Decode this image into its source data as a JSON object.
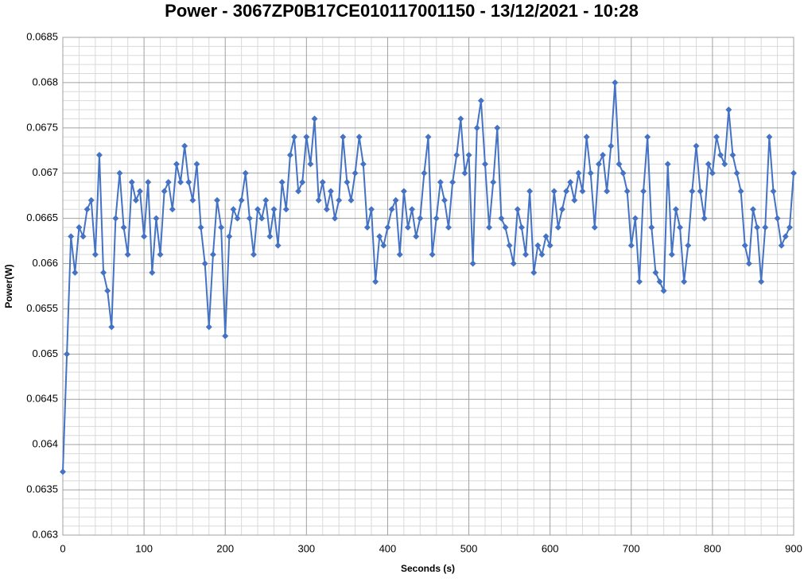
{
  "chart_data": {
    "type": "line",
    "title": "Power - 3067ZP0B17CE010117001150 - 13/12/2021 - 10:28",
    "x_label": "Seconds (s)",
    "y_label": "Power(W)",
    "color": "#4472c4",
    "grid": true,
    "markers": "diamond",
    "xlim": [
      0,
      900
    ],
    "xticks": [
      0,
      100,
      200,
      300,
      400,
      500,
      600,
      700,
      800,
      900
    ],
    "ylim": [
      0.063,
      0.0685
    ],
    "yticks": [
      0.063,
      0.0635,
      0.064,
      0.0645,
      0.065,
      0.0655,
      0.066,
      0.0665,
      0.067,
      0.0675,
      0.068,
      0.0685
    ],
    "xminorticks": [
      20,
      40,
      60,
      80,
      120,
      140,
      160,
      180,
      220,
      240,
      260,
      280,
      320,
      340,
      360,
      380,
      420,
      440,
      460,
      480,
      520,
      540,
      560,
      580,
      620,
      640,
      660,
      680,
      720,
      740,
      760,
      780,
      820,
      840,
      860,
      880
    ],
    "yminorticks": [
      0.0631,
      0.0632,
      0.0633,
      0.0634,
      0.0636,
      0.0637,
      0.0638,
      0.0639,
      0.0641,
      0.0642,
      0.0643,
      0.0644,
      0.0646,
      0.0647,
      0.0648,
      0.0649,
      0.0651,
      0.0652,
      0.0653,
      0.0654,
      0.0656,
      0.0657,
      0.0658,
      0.0659,
      0.0661,
      0.0662,
      0.0663,
      0.0664,
      0.0666,
      0.0667,
      0.0668,
      0.0669,
      0.0671,
      0.0672,
      0.0673,
      0.0674,
      0.0676,
      0.0677,
      0.0678,
      0.0679,
      0.0681,
      0.0682,
      0.0683,
      0.0684
    ],
    "x": [
      0,
      5,
      10,
      15,
      20,
      25,
      30,
      35,
      40,
      45,
      50,
      55,
      60,
      65,
      70,
      75,
      80,
      85,
      90,
      95,
      100,
      105,
      110,
      115,
      120,
      125,
      130,
      135,
      140,
      145,
      150,
      155,
      160,
      165,
      170,
      175,
      180,
      185,
      190,
      195,
      200,
      205,
      210,
      215,
      220,
      225,
      230,
      235,
      240,
      245,
      250,
      255,
      260,
      265,
      270,
      275,
      280,
      285,
      290,
      295,
      300,
      305,
      310,
      315,
      320,
      325,
      330,
      335,
      340,
      345,
      350,
      355,
      360,
      365,
      370,
      375,
      380,
      385,
      390,
      395,
      400,
      405,
      410,
      415,
      420,
      425,
      430,
      435,
      440,
      445,
      450,
      455,
      460,
      465,
      470,
      475,
      480,
      485,
      490,
      495,
      500,
      505,
      510,
      515,
      520,
      525,
      530,
      535,
      540,
      545,
      550,
      555,
      560,
      565,
      570,
      575,
      580,
      585,
      590,
      595,
      600,
      605,
      610,
      615,
      620,
      625,
      630,
      635,
      640,
      645,
      650,
      655,
      660,
      665,
      670,
      675,
      680,
      685,
      690,
      695,
      700,
      705,
      710,
      715,
      720,
      725,
      730,
      735,
      740,
      745,
      750,
      755,
      760,
      765,
      770,
      775,
      780,
      785,
      790,
      795,
      800,
      805,
      810,
      815,
      820,
      825,
      830,
      835,
      840,
      845,
      850,
      855,
      860,
      865,
      870,
      875,
      880,
      885,
      890,
      895,
      900
    ],
    "values": [
      0.0637,
      0.065,
      0.0663,
      0.0659,
      0.0664,
      0.0663,
      0.0666,
      0.0667,
      0.0661,
      0.0672,
      0.0659,
      0.0657,
      0.0653,
      0.0665,
      0.067,
      0.0664,
      0.0661,
      0.0669,
      0.0667,
      0.0668,
      0.0663,
      0.0669,
      0.0659,
      0.0665,
      0.0661,
      0.0668,
      0.0669,
      0.0666,
      0.0671,
      0.0669,
      0.0673,
      0.0669,
      0.0667,
      0.0671,
      0.0664,
      0.066,
      0.0653,
      0.0661,
      0.0667,
      0.0664,
      0.0652,
      0.0663,
      0.0666,
      0.0665,
      0.0667,
      0.067,
      0.0665,
      0.0661,
      0.0666,
      0.0665,
      0.0667,
      0.0663,
      0.0666,
      0.0662,
      0.0669,
      0.0666,
      0.0672,
      0.0674,
      0.0668,
      0.0669,
      0.0674,
      0.0671,
      0.0676,
      0.0667,
      0.0669,
      0.0666,
      0.0668,
      0.0665,
      0.0667,
      0.0674,
      0.0669,
      0.0667,
      0.067,
      0.0674,
      0.0671,
      0.0664,
      0.0666,
      0.0658,
      0.0663,
      0.0662,
      0.0664,
      0.0666,
      0.0667,
      0.0661,
      0.0668,
      0.0664,
      0.0666,
      0.0663,
      0.0665,
      0.067,
      0.0674,
      0.0661,
      0.0665,
      0.0669,
      0.0667,
      0.0664,
      0.0669,
      0.0672,
      0.0676,
      0.067,
      0.0672,
      0.066,
      0.0675,
      0.0678,
      0.0671,
      0.0664,
      0.0669,
      0.0675,
      0.0665,
      0.0664,
      0.0662,
      0.066,
      0.0666,
      0.0664,
      0.0661,
      0.0668,
      0.0659,
      0.0662,
      0.0661,
      0.0663,
      0.0662,
      0.0668,
      0.0664,
      0.0666,
      0.0668,
      0.0669,
      0.0667,
      0.067,
      0.0668,
      0.0674,
      0.067,
      0.0664,
      0.0671,
      0.0672,
      0.0668,
      0.0673,
      0.068,
      0.0671,
      0.067,
      0.0668,
      0.0662,
      0.0665,
      0.0658,
      0.0668,
      0.0674,
      0.0664,
      0.0659,
      0.0658,
      0.0657,
      0.0671,
      0.0661,
      0.0666,
      0.0664,
      0.0658,
      0.0662,
      0.0668,
      0.0673,
      0.0668,
      0.0665,
      0.0671,
      0.067,
      0.0674,
      0.0672,
      0.0671,
      0.0677,
      0.0672,
      0.067,
      0.0668,
      0.0662,
      0.066,
      0.0666,
      0.0664,
      0.0658,
      0.0664,
      0.0674,
      0.0668,
      0.0665,
      0.0662,
      0.0663,
      0.0664,
      0.067
    ]
  }
}
